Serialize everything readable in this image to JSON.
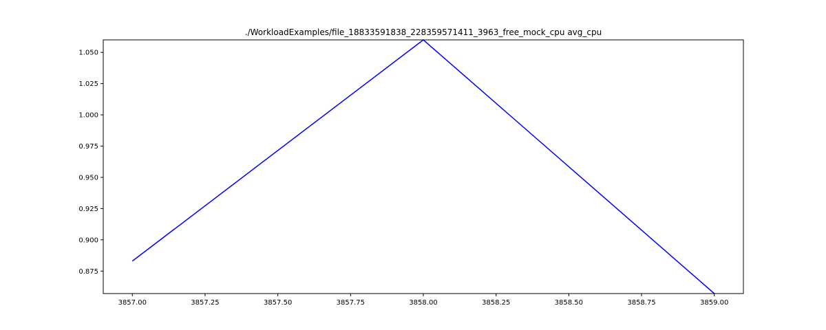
{
  "chart_data": {
    "type": "line",
    "title": "./WorkloadExamples/file_18833591838_228359571411_3963_free_mock_cpu avg_cpu",
    "xlabel": "",
    "ylabel": "",
    "x": [
      3857.0,
      3858.0,
      3859.0
    ],
    "series": [
      {
        "values": [
          0.883,
          1.06,
          0.857
        ],
        "color": "#0000ff"
      }
    ],
    "xlim": [
      3856.9,
      3859.1
    ],
    "ylim": [
      0.857,
      1.06
    ],
    "xticks": [
      3857.0,
      3857.25,
      3857.5,
      3857.75,
      3858.0,
      3858.25,
      3858.5,
      3858.75,
      3859.0
    ],
    "xtick_labels": [
      "3857.00",
      "3857.25",
      "3857.50",
      "3857.75",
      "3858.00",
      "3858.25",
      "3858.50",
      "3858.75",
      "3859.00"
    ],
    "yticks": [
      0.875,
      0.9,
      0.925,
      0.95,
      0.975,
      1.0,
      1.025,
      1.05
    ],
    "ytick_labels": [
      "0.875",
      "0.900",
      "0.925",
      "0.950",
      "0.975",
      "1.000",
      "1.025",
      "1.050"
    ],
    "grid": false,
    "legend": "none"
  }
}
